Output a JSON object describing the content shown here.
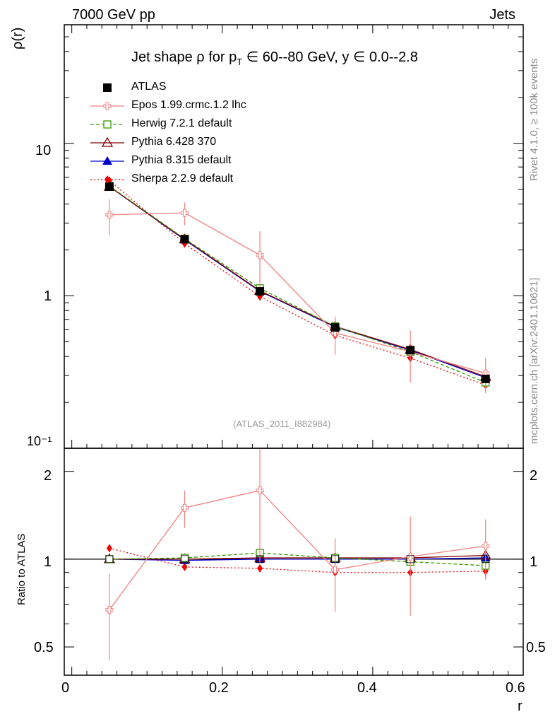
{
  "header": {
    "left": "7000 GeV pp",
    "right": "Jets"
  },
  "side_labels": {
    "rivet": "Rivet 4.1.0, ≥ 100k events",
    "mcplots": "mcplots.cern.ch [arXiv:2401.10621]"
  },
  "chart_data": {
    "type": "line",
    "title": "Jet shape ρ for p_T ∈ 60--80 GeV, y ∈ 0.0--2.8",
    "title_parts": {
      "a": "Jet shape ρ for p",
      "sub": "T",
      "b": " ∈ 60--80 GeV, y ∈ 0.0--2.8"
    },
    "reference": "(ATLAS_2011_I882984)",
    "xlabel": "r",
    "ylabel_main": "ρ(r)",
    "ylabel_ratio": "Ratio to ATLAS",
    "xlim": [
      -0.01,
      0.6
    ],
    "ylim_main": [
      0.1,
      60
    ],
    "ylim_ratio": [
      0.4,
      2.4
    ],
    "x_ticks": [
      "0",
      "0.2",
      "0.4",
      "0.6"
    ],
    "y_ticks_main": [
      "10",
      "1",
      "10⁻¹"
    ],
    "y_ticks_ratio": [
      "2",
      "1",
      "0.5"
    ],
    "x": [
      0.05,
      0.15,
      0.25,
      0.35,
      0.45,
      0.55
    ],
    "data": {
      "name": "ATLAS",
      "values": [
        5.2,
        2.35,
        1.07,
        0.62,
        0.44,
        0.285
      ]
    },
    "series": [
      {
        "name": "Epos 1.99.crmc.1.2 lhc",
        "color": "#f08080",
        "marker": "cross",
        "values": [
          3.4,
          3.5,
          1.85,
          0.57,
          0.43,
          0.31
        ],
        "errors": [
          0.9,
          0.6,
          0.8,
          0.16,
          0.16,
          0.08
        ],
        "ratio": [
          0.67,
          1.5,
          1.72,
          0.92,
          1.02,
          1.11
        ],
        "ratio_errors": [
          0.22,
          0.22,
          0.75,
          0.26,
          0.38,
          0.26
        ]
      },
      {
        "name": "Herwig 7.2.1 default",
        "color": "#339900",
        "marker": "square-open",
        "values": [
          5.25,
          2.37,
          1.12,
          0.63,
          0.43,
          0.27
        ],
        "ratio": [
          1.0,
          1.01,
          1.05,
          1.01,
          0.98,
          0.95
        ]
      },
      {
        "name": "Pythia 6.428 370",
        "color": "#800000",
        "marker": "triangle-open",
        "values": [
          5.2,
          2.35,
          1.08,
          0.63,
          0.445,
          0.295
        ],
        "ratio": [
          1.0,
          1.0,
          1.01,
          1.01,
          1.01,
          1.03
        ]
      },
      {
        "name": "Pythia 8.315 default",
        "color": "#0000cc",
        "marker": "triangle",
        "values": [
          5.2,
          2.33,
          1.07,
          0.625,
          0.44,
          0.29
        ],
        "ratio": [
          1.0,
          0.99,
          1.0,
          1.0,
          1.0,
          1.01
        ]
      },
      {
        "name": "Sherpa 2.2.9 default",
        "color": "#ee0000",
        "marker": "diamond",
        "values": [
          5.7,
          2.2,
          0.99,
          0.55,
          0.39,
          0.26
        ],
        "ratio": [
          1.09,
          0.94,
          0.93,
          0.9,
          0.9,
          0.91
        ],
        "ratio_errors": [
          0.02,
          0.0,
          0.0,
          0.0,
          0.0,
          0.04
        ]
      }
    ]
  }
}
